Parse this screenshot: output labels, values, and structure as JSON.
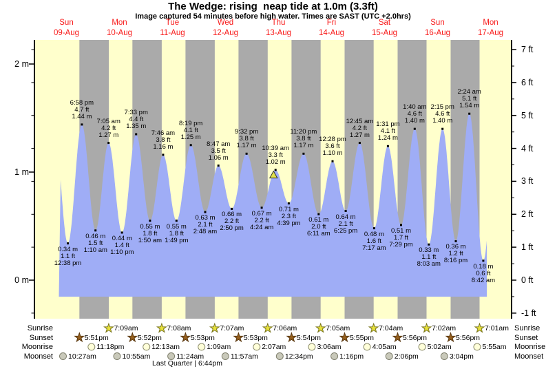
{
  "title": "The Wedge: rising  neap tide at 1.0m (3.3ft)",
  "subtitle": "Image captured 54 minutes before high water. Times are SAST (UTC +2.0hrs)",
  "days": [
    {
      "name": "Sun",
      "date": "09-Aug"
    },
    {
      "name": "Mon",
      "date": "10-Aug"
    },
    {
      "name": "Tue",
      "date": "11-Aug"
    },
    {
      "name": "Wed",
      "date": "12-Aug"
    },
    {
      "name": "Thu",
      "date": "13-Aug"
    },
    {
      "name": "Fri",
      "date": "14-Aug"
    },
    {
      "name": "Sat",
      "date": "15-Aug"
    },
    {
      "name": "Sun",
      "date": "16-Aug"
    },
    {
      "name": "Mon",
      "date": "17-Aug"
    }
  ],
  "axes": {
    "left_ticks": [
      {
        "label": "0 m",
        "value_m": 0
      },
      {
        "label": "1 m",
        "value_m": 1
      },
      {
        "label": "2 m",
        "value_m": 2
      }
    ],
    "right_ticks": [
      {
        "label": "-1 ft",
        "value_ft": -1
      },
      {
        "label": "0 ft",
        "value_ft": 0
      },
      {
        "label": "1 ft",
        "value_ft": 1
      },
      {
        "label": "2 ft",
        "value_ft": 2
      },
      {
        "label": "3 ft",
        "value_ft": 3
      },
      {
        "label": "4 ft",
        "value_ft": 4
      },
      {
        "label": "5 ft",
        "value_ft": 5
      },
      {
        "label": "6 ft",
        "value_ft": 6
      },
      {
        "label": "7 ft",
        "value_ft": 7
      }
    ]
  },
  "chart_data": {
    "type": "area",
    "title": "The Wedge: rising  neap tide at 1.0m (3.3ft)",
    "ylabel_left": "meters",
    "ylabel_right": "feet",
    "ylim_m": [
      -0.35,
      2.3
    ],
    "x_range_days": [
      "09-Aug",
      "17-Aug"
    ],
    "tide_events": [
      {
        "day": 0,
        "type": "low",
        "time": "12:38 pm",
        "height_m": 0.34,
        "m_label": "0.34 m",
        "ft_label": "1.1 ft"
      },
      {
        "day": 0,
        "type": "high",
        "time": "6:58 pm",
        "height_m": 1.44,
        "m_label": "1.44 m",
        "ft_label": "4.7 ft"
      },
      {
        "day": 1,
        "type": "low",
        "time": "1:10 am",
        "height_m": 0.46,
        "m_label": "0.46 m",
        "ft_label": "1.5 ft"
      },
      {
        "day": 1,
        "type": "high",
        "time": "7:05 am",
        "height_m": 1.27,
        "m_label": "1.27 m",
        "ft_label": "4.2 ft"
      },
      {
        "day": 1,
        "type": "low",
        "time": "1:10 pm",
        "height_m": 0.44,
        "m_label": "0.44 m",
        "ft_label": "1.4 ft"
      },
      {
        "day": 1,
        "type": "high",
        "time": "7:33 pm",
        "height_m": 1.35,
        "m_label": "1.35 m",
        "ft_label": "4.4 ft"
      },
      {
        "day": 2,
        "type": "low",
        "time": "1:50 am",
        "height_m": 0.55,
        "m_label": "0.55 m",
        "ft_label": "1.8 ft"
      },
      {
        "day": 2,
        "type": "high",
        "time": "7:46 am",
        "height_m": 1.16,
        "m_label": "1.16 m",
        "ft_label": "3.8 ft"
      },
      {
        "day": 2,
        "type": "low",
        "time": "1:49 pm",
        "height_m": 0.55,
        "m_label": "0.55 m",
        "ft_label": "1.8 ft"
      },
      {
        "day": 2,
        "type": "high",
        "time": "8:19 pm",
        "height_m": 1.25,
        "m_label": "1.25 m",
        "ft_label": "4.1 ft"
      },
      {
        "day": 3,
        "type": "low",
        "time": "2:48 am",
        "height_m": 0.63,
        "m_label": "0.63 m",
        "ft_label": "2.1 ft"
      },
      {
        "day": 3,
        "type": "high",
        "time": "8:47 am",
        "height_m": 1.06,
        "m_label": "1.06 m",
        "ft_label": "3.5 ft"
      },
      {
        "day": 3,
        "type": "low",
        "time": "2:50 pm",
        "height_m": 0.66,
        "m_label": "0.66 m",
        "ft_label": "2.2 ft"
      },
      {
        "day": 3,
        "type": "high",
        "time": "9:32 pm",
        "height_m": 1.17,
        "m_label": "1.17 m",
        "ft_label": "3.8 ft"
      },
      {
        "day": 4,
        "type": "low",
        "time": "4:24 am",
        "height_m": 0.67,
        "m_label": "0.67 m",
        "ft_label": "2.2 ft"
      },
      {
        "day": 4,
        "type": "high",
        "time": "10:39 am",
        "height_m": 1.02,
        "m_label": "1.02 m",
        "ft_label": "3.3 ft"
      },
      {
        "day": 4,
        "type": "low",
        "time": "4:39 pm",
        "height_m": 0.71,
        "m_label": "0.71 m",
        "ft_label": "2.3 ft"
      },
      {
        "day": 4,
        "type": "high",
        "time": "11:20 pm",
        "height_m": 1.17,
        "m_label": "1.17 m",
        "ft_label": "3.8 ft"
      },
      {
        "day": 5,
        "type": "low",
        "time": "6:11 am",
        "height_m": 0.61,
        "m_label": "0.61 m",
        "ft_label": "2.0 ft"
      },
      {
        "day": 5,
        "type": "high",
        "time": "12:28 pm",
        "height_m": 1.1,
        "m_label": "1.10 m",
        "ft_label": "3.6 ft"
      },
      {
        "day": 5,
        "type": "low",
        "time": "6:25 pm",
        "height_m": 0.64,
        "m_label": "0.64 m",
        "ft_label": "2.1 ft"
      },
      {
        "day": 6,
        "type": "high",
        "time": "12:45 am",
        "height_m": 1.27,
        "m_label": "1.27 m",
        "ft_label": "4.2 ft"
      },
      {
        "day": 6,
        "type": "low",
        "time": "7:17 am",
        "height_m": 0.48,
        "m_label": "0.48 m",
        "ft_label": "1.6 ft"
      },
      {
        "day": 6,
        "type": "high",
        "time": "1:31 pm",
        "height_m": 1.24,
        "m_label": "1.24 m",
        "ft_label": "4.1 ft"
      },
      {
        "day": 6,
        "type": "low",
        "time": "7:29 pm",
        "height_m": 0.51,
        "m_label": "0.51 m",
        "ft_label": "1.7 ft"
      },
      {
        "day": 7,
        "type": "high",
        "time": "1:40 am",
        "height_m": 1.4,
        "m_label": "1.40 m",
        "ft_label": "4.6 ft"
      },
      {
        "day": 7,
        "type": "low",
        "time": "8:03 am",
        "height_m": 0.33,
        "m_label": "0.33 m",
        "ft_label": "1.1 ft"
      },
      {
        "day": 7,
        "type": "high",
        "time": "2:15 pm",
        "height_m": 1.4,
        "m_label": "1.40 m",
        "ft_label": "4.6 ft"
      },
      {
        "day": 7,
        "type": "low",
        "time": "8:16 pm",
        "height_m": 0.36,
        "m_label": "0.36 m",
        "ft_label": "1.2 ft"
      },
      {
        "day": 8,
        "type": "high",
        "time": "2:24 am",
        "height_m": 1.54,
        "m_label": "1.54 m",
        "ft_label": "5.1 ft"
      },
      {
        "day": 8,
        "type": "low",
        "time": "8:42 am",
        "height_m": 0.18,
        "m_label": "0.18 m",
        "ft_label": "0.6 ft"
      }
    ],
    "current_marker": {
      "day": 4,
      "time": "9:45 am"
    }
  },
  "almanac": {
    "rows": [
      {
        "label": "Sunrise",
        "icon": "sunrise-star-icon",
        "entries": [
          {
            "day": 1,
            "time": "7:09am"
          },
          {
            "day": 2,
            "time": "7:08am"
          },
          {
            "day": 3,
            "time": "7:07am"
          },
          {
            "day": 4,
            "time": "7:06am"
          },
          {
            "day": 5,
            "time": "7:05am"
          },
          {
            "day": 6,
            "time": "7:04am"
          },
          {
            "day": 7,
            "time": "7:02am"
          },
          {
            "day": 8,
            "time": "7:01am"
          }
        ]
      },
      {
        "label": "Sunset",
        "icon": "sunset-star-icon",
        "entries": [
          {
            "day": 0,
            "time": "5:51pm"
          },
          {
            "day": 1,
            "time": "5:52pm"
          },
          {
            "day": 2,
            "time": "5:53pm"
          },
          {
            "day": 3,
            "time": "5:53pm"
          },
          {
            "day": 4,
            "time": "5:54pm"
          },
          {
            "day": 5,
            "time": "5:55pm"
          },
          {
            "day": 6,
            "time": "5:56pm"
          },
          {
            "day": 7,
            "time": "5:56pm"
          }
        ]
      },
      {
        "label": "Moonrise",
        "icon": "moonrise-circle-icon",
        "entries": [
          {
            "day": 0,
            "time": "11:18pm"
          },
          {
            "day": 2,
            "time": "12:13am"
          },
          {
            "day": 3,
            "time": "1:09am"
          },
          {
            "day": 4,
            "time": "2:07am"
          },
          {
            "day": 5,
            "time": "3:06am"
          },
          {
            "day": 6,
            "time": "4:05am"
          },
          {
            "day": 7,
            "time": "5:02am"
          },
          {
            "day": 8,
            "time": "5:55am"
          }
        ]
      },
      {
        "label": "Moonset",
        "icon": "moonset-circle-icon",
        "entries": [
          {
            "day": 0,
            "time": "10:27am"
          },
          {
            "day": 1,
            "time": "10:55am"
          },
          {
            "day": 2,
            "time": "11:24am"
          },
          {
            "day": 3,
            "time": "11:57am"
          },
          {
            "day": 4,
            "time": "12:34pm"
          },
          {
            "day": 5,
            "time": "1:16pm"
          },
          {
            "day": 6,
            "time": "2:06pm"
          },
          {
            "day": 7,
            "time": "3:04pm"
          }
        ]
      }
    ],
    "moon_phase": "Last Quarter | 6:44pm"
  },
  "colors": {
    "day_band": "#ffffcc",
    "night_band": "#aaaaaa",
    "tide_fill": "#9fadf6",
    "day_label_red": "#f81b1b",
    "sunrise_star_fill": "#e8e23c",
    "sunrise_star_stroke": "#7a761f",
    "sunset_star_fill": "#96601e",
    "sunset_star_stroke": "#59370f",
    "moonrise_fill": "#ffffd9",
    "moonrise_stroke": "#8b8b6b",
    "moonset_fill": "#c9c9ba",
    "moonset_stroke": "#80806e",
    "current_marker_fill": "#e0e04a",
    "current_marker_stroke": "#333333"
  }
}
